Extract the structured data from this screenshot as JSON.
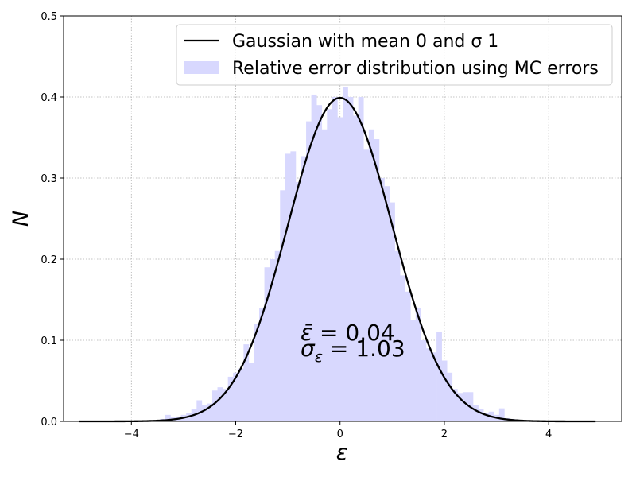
{
  "chart_data": {
    "type": "bar",
    "title": "",
    "xlabel": "ε",
    "ylabel": "N",
    "xlim": [
      -5.3,
      5.4
    ],
    "ylim": [
      0,
      0.5
    ],
    "grid": true,
    "legend_position": "top-right",
    "xticks": [
      -4,
      -2,
      0,
      2,
      4
    ],
    "xtick_labels": [
      "−4",
      "−2",
      "0",
      "2",
      "4"
    ],
    "yticks": [
      0.0,
      0.1,
      0.2,
      0.3,
      0.4,
      0.5
    ],
    "ytick_labels": [
      "0.0",
      "0.1",
      "0.2",
      "0.3",
      "0.4",
      "0.5"
    ],
    "series": [
      {
        "name": "Gaussian with mean 0 and σ 1",
        "type": "line",
        "color": "#000000",
        "mean": 0,
        "sigma": 1,
        "x_range": [
          -5,
          4.9
        ]
      },
      {
        "name": "Relative error distribution using MC errors",
        "type": "histogram",
        "color": "#d8d8fe",
        "bin_width": 0.1,
        "x": [
          -3.4,
          -3.3,
          -3.2,
          -3.1,
          -3.0,
          -2.9,
          -2.8,
          -2.7,
          -2.6,
          -2.5,
          -2.4,
          -2.3,
          -2.2,
          -2.1,
          -2.0,
          -1.9,
          -1.8,
          -1.7,
          -1.6,
          -1.5,
          -1.4,
          -1.3,
          -1.2,
          -1.1,
          -1.0,
          -0.9,
          -0.8,
          -0.7,
          -0.6,
          -0.5,
          -0.4,
          -0.3,
          -0.2,
          -0.1,
          0.0,
          0.1,
          0.2,
          0.3,
          0.4,
          0.5,
          0.6,
          0.7,
          0.8,
          0.9,
          1.0,
          1.1,
          1.2,
          1.3,
          1.4,
          1.5,
          1.6,
          1.7,
          1.8,
          1.9,
          2.0,
          2.1,
          2.2,
          2.3,
          2.4,
          2.5,
          2.6,
          2.7,
          2.8,
          2.9,
          3.0,
          3.1,
          3.2,
          3.3,
          3.4
        ],
        "values": [
          0.003,
          0.008,
          0.005,
          0.006,
          0.008,
          0.01,
          0.015,
          0.026,
          0.02,
          0.022,
          0.038,
          0.042,
          0.04,
          0.055,
          0.06,
          0.065,
          0.095,
          0.072,
          0.12,
          0.14,
          0.19,
          0.2,
          0.21,
          0.285,
          0.33,
          0.333,
          0.295,
          0.327,
          0.37,
          0.403,
          0.39,
          0.36,
          0.385,
          0.4,
          0.375,
          0.412,
          0.4,
          0.377,
          0.4,
          0.335,
          0.36,
          0.348,
          0.3,
          0.29,
          0.27,
          0.21,
          0.18,
          0.16,
          0.125,
          0.14,
          0.1,
          0.09,
          0.085,
          0.11,
          0.075,
          0.06,
          0.04,
          0.035,
          0.036,
          0.036,
          0.02,
          0.015,
          0.01,
          0.012,
          0.008,
          0.016,
          0.004,
          0.003,
          0.002
        ]
      }
    ],
    "annotations": [
      {
        "label": "ε̄ = 0.04"
      },
      {
        "label": "σ_ε = 1.03"
      }
    ]
  }
}
